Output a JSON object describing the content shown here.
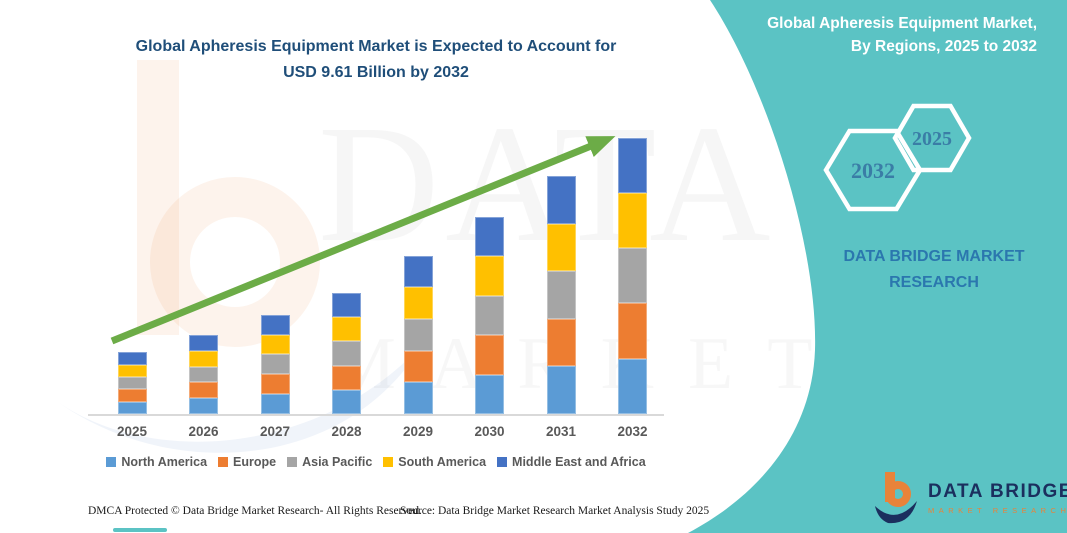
{
  "page": {
    "title_line1": "Global Apheresis Equipment Market is Expected to Account for",
    "title_line2": "USD 9.61 Billion by 2032"
  },
  "sidebar": {
    "heading_line1": "Global Apheresis Equipment Market,",
    "heading_line2": "By Regions, 2025 to 2032",
    "hexagons": [
      {
        "label": "2032"
      },
      {
        "label": "2025"
      }
    ],
    "brand_line1": "DATA BRIDGE MARKET",
    "brand_line2": "RESEARCH",
    "logo": {
      "name": "DATA BRIDGE",
      "tagline": "MARKET RESEARCH"
    }
  },
  "footer": {
    "left": "DMCA Protected © Data Bridge Market Research-  All Rights Reserved.",
    "source": "Source: Data Bridge Market Research  Market Analysis Study 2025"
  },
  "watermark": {
    "line1": "DATA BRIDGE",
    "line2": "MARKET RESEARCH"
  },
  "colors": {
    "teal": "#5BC3C4",
    "title_navy": "#1F4E79",
    "arrow_green": "#6CAC47",
    "axis_gray": "#D9D9D9",
    "label_gray": "#595959",
    "hex_text": "#3A7DA6",
    "brand_blue": "#2B77AE",
    "logo_navy": "#1b2f5e",
    "logo_orange": "#E8833A"
  },
  "chart_data": {
    "type": "bar",
    "stacked": true,
    "title": "Global Apheresis Equipment Market is Expected to Account for USD 9.61 Billion by 2032",
    "unit": "USD Billion",
    "categories": [
      "2025",
      "2026",
      "2027",
      "2028",
      "2029",
      "2030",
      "2031",
      "2032"
    ],
    "series": [
      {
        "name": "North America",
        "color": "#5B9BD5",
        "values": [
          0.43,
          0.55,
          0.69,
          0.84,
          1.1,
          1.37,
          1.65,
          1.92
        ]
      },
      {
        "name": "Europe",
        "color": "#ED7D31",
        "values": [
          0.43,
          0.55,
          0.69,
          0.84,
          1.1,
          1.37,
          1.65,
          1.92
        ]
      },
      {
        "name": "Asia Pacific",
        "color": "#A5A5A5",
        "values": [
          0.43,
          0.55,
          0.69,
          0.84,
          1.1,
          1.37,
          1.65,
          1.92
        ]
      },
      {
        "name": "South America",
        "color": "#FFC000",
        "values": [
          0.43,
          0.55,
          0.69,
          0.84,
          1.1,
          1.37,
          1.65,
          1.92
        ]
      },
      {
        "name": "Middle East and Africa",
        "color": "#4472C4",
        "values": [
          0.43,
          0.55,
          0.69,
          0.84,
          1.1,
          1.37,
          1.65,
          1.92
        ]
      }
    ],
    "totals": [
      2.15,
      2.75,
      3.45,
      4.2,
      5.5,
      6.85,
      8.25,
      9.61
    ],
    "ylim": [
      0,
      10
    ],
    "grid": false,
    "legend_position": "bottom",
    "annotations": [
      "upward green trend arrow from 2025 to 2032"
    ]
  }
}
